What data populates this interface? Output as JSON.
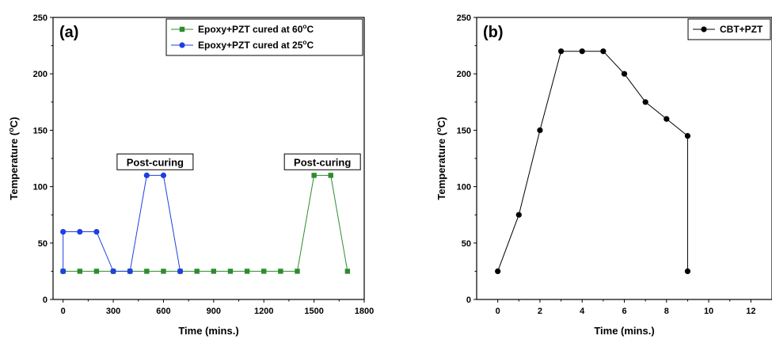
{
  "chart_data": [
    {
      "type": "line",
      "panel_label": "(a)",
      "xlabel": "Time (mins.)",
      "ylabel": "Temperature (°C)",
      "xlim": [
        -60,
        1800
      ],
      "ylim": [
        0,
        250
      ],
      "xticks": [
        0,
        300,
        600,
        900,
        1200,
        1500,
        1800
      ],
      "yticks": [
        0,
        50,
        100,
        150,
        200,
        250
      ],
      "grid": false,
      "legend_position": "top-right",
      "series": [
        {
          "name": "Epoxy+PZT cured at 60°C",
          "color": "#2e8b2e",
          "marker": "square",
          "x": [
            0,
            100,
            200,
            300,
            400,
            500,
            600,
            700,
            800,
            900,
            1000,
            1100,
            1200,
            1300,
            1400,
            1500,
            1600,
            1700
          ],
          "y": [
            25,
            25,
            25,
            25,
            25,
            25,
            25,
            25,
            25,
            25,
            25,
            25,
            25,
            25,
            25,
            110,
            110,
            25
          ]
        },
        {
          "name": "Epoxy+PZT cured at 25°C",
          "color": "#1f3fe0",
          "marker": "circle",
          "x": [
            0,
            0,
            100,
            200,
            300,
            400,
            500,
            600,
            700
          ],
          "y": [
            25,
            60,
            60,
            60,
            25,
            25,
            110,
            110,
            25
          ]
        }
      ],
      "annotations": [
        {
          "text": "Post-curing",
          "x": 550,
          "y": 122
        },
        {
          "text": "Post-curing",
          "x": 1550,
          "y": 122
        }
      ]
    },
    {
      "type": "line",
      "panel_label": "(b)",
      "xlabel": "Time (mins.)",
      "ylabel": "Temperature (°C)",
      "xlim": [
        -1,
        13
      ],
      "ylim": [
        0,
        250
      ],
      "xticks": [
        0,
        2,
        4,
        6,
        8,
        10,
        12
      ],
      "yticks": [
        0,
        50,
        100,
        150,
        200,
        250
      ],
      "grid": false,
      "legend_position": "top-right",
      "series": [
        {
          "name": "CBT+PZT",
          "color": "#000000",
          "marker": "circle",
          "x": [
            0,
            1,
            2,
            3,
            4,
            5,
            6,
            7,
            8,
            9,
            9
          ],
          "y": [
            25,
            75,
            150,
            220,
            220,
            220,
            200,
            175,
            160,
            145,
            25
          ]
        }
      ]
    }
  ]
}
